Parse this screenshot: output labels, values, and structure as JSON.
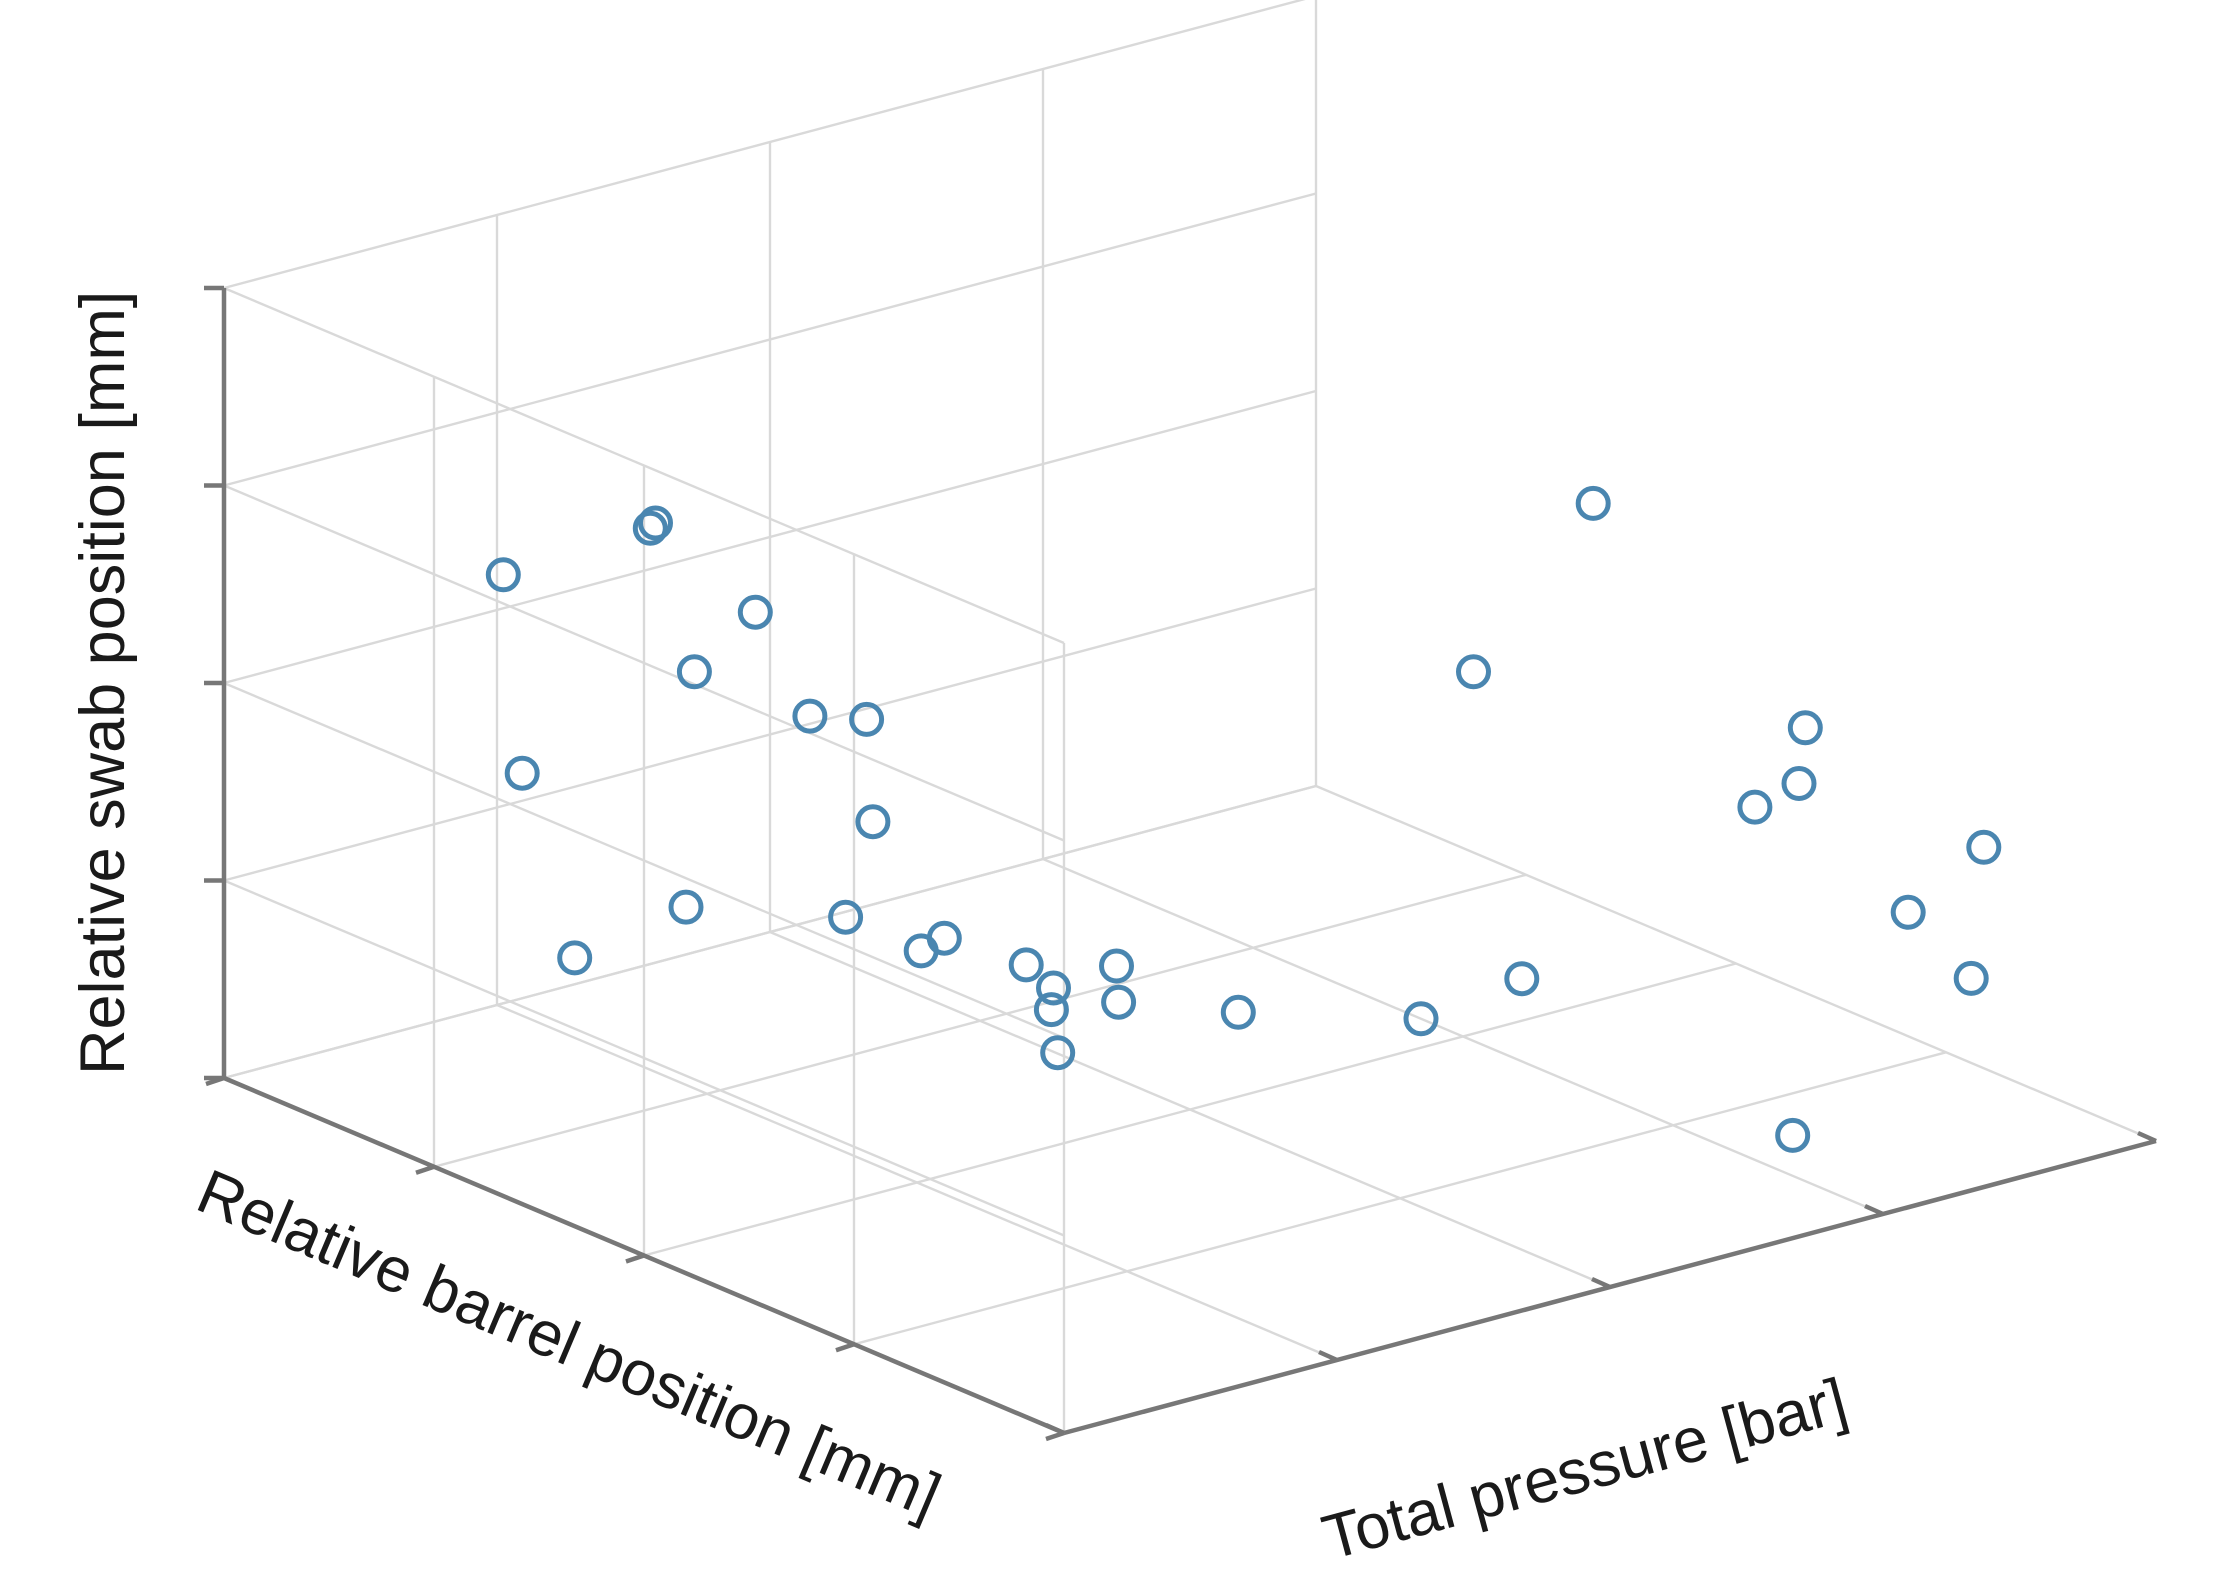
{
  "chart_data": {
    "type": "scatter",
    "projection": "3d",
    "title": "",
    "xlabel": "Total pressure [bar]",
    "ylabel": "Relative barrel position [mm]",
    "zlabel": "Relative swab position [mm]",
    "xlim": [
      0,
      4
    ],
    "ylim": [
      0,
      4
    ],
    "zlim": [
      0,
      4
    ],
    "tick_labels_shown": false,
    "grid": true,
    "legend": "none",
    "marker": "circle-open",
    "color": "#4a86b0",
    "points": [
      {
        "x": 0.1,
        "y": 2.1,
        "z": 3.6
      },
      {
        "x": 0.1,
        "y": 1.6,
        "z": 3.4
      },
      {
        "x": 0.35,
        "y": 2.4,
        "z": 3.4
      },
      {
        "x": 0.1,
        "y": 2.8,
        "z": 3.05
      },
      {
        "x": 2.4,
        "y": 0.6,
        "z": 3.55
      },
      {
        "x": 1.5,
        "y": 0.0,
        "z": 3.3
      },
      {
        "x": 0.4,
        "y": 3.1,
        "z": 1.8
      },
      {
        "x": 0.2,
        "y": 1.2,
        "z": 3.0
      },
      {
        "x": 0.3,
        "y": 1.6,
        "z": 2.8
      },
      {
        "x": 0.3,
        "y": 1.3,
        "z": 2.4
      },
      {
        "x": 0.8,
        "y": 2.8,
        "z": 2.3
      },
      {
        "x": 0.5,
        "y": 0.4,
        "z": 2.0
      },
      {
        "x": 1.1,
        "y": 2.0,
        "z": 1.2
      },
      {
        "x": 1.2,
        "y": 2.6,
        "z": 1.0
      },
      {
        "x": 1.0,
        "y": 3.1,
        "z": 0.9
      },
      {
        "x": 1.4,
        "y": 2.5,
        "z": 0.8
      },
      {
        "x": 0.9,
        "y": 3.5,
        "z": 0.5
      },
      {
        "x": 1.5,
        "y": 2.0,
        "z": 0.8
      },
      {
        "x": 1.8,
        "y": 2.4,
        "z": 0.4
      },
      {
        "x": 1.9,
        "y": 2.5,
        "z": 0.1
      },
      {
        "x": 2.1,
        "y": 1.9,
        "z": 0.5
      },
      {
        "x": 2.2,
        "y": 2.6,
        "z": 0.2
      },
      {
        "x": 2.6,
        "y": 1.2,
        "z": 0.8
      },
      {
        "x": 3.1,
        "y": 0.5,
        "z": 2.2
      },
      {
        "x": 3.0,
        "y": 0.4,
        "z": 2.0
      },
      {
        "x": 3.3,
        "y": 1.0,
        "z": 1.5
      },
      {
        "x": 3.4,
        "y": 0.4,
        "z": 1.2
      },
      {
        "x": 3.6,
        "y": 0.3,
        "z": 1.5
      },
      {
        "x": 3.4,
        "y": 0.1,
        "z": 1.0
      },
      {
        "x": 3.0,
        "y": 2.2,
        "z": 0.0
      },
      {
        "x": 2.4,
        "y": 3.3,
        "z": 0.0
      },
      {
        "x": 2.9,
        "y": 0.3,
        "z": 0.3
      }
    ]
  }
}
